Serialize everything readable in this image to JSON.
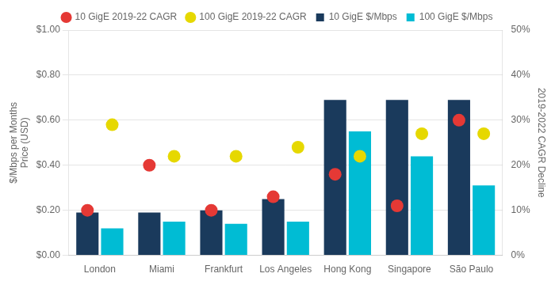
{
  "chart_data": {
    "type": "bar",
    "categories": [
      "London",
      "Miami",
      "Frankfurt",
      "Los Angeles",
      "Hong Kong",
      "Singapore",
      "São Paulo"
    ],
    "series": [
      {
        "name": "10 GigE $/Mbps",
        "type": "bar",
        "color": "#1a3a5c",
        "values": [
          0.19,
          0.19,
          0.2,
          0.25,
          0.69,
          0.69,
          0.69
        ]
      },
      {
        "name": "100 GigE $/Mbps",
        "type": "bar",
        "color": "#00bcd4",
        "values": [
          0.12,
          0.15,
          0.14,
          0.15,
          0.55,
          0.44,
          0.31
        ]
      },
      {
        "name": "10 GigE 2019-22 CAGR",
        "type": "scatter",
        "marker": "circle",
        "axis": "y2",
        "color": "#e53935",
        "values": [
          0.1,
          0.2,
          0.1,
          0.13,
          0.18,
          0.11,
          0.3
        ]
      },
      {
        "name": "100 GigE 2019-22 CAGR",
        "type": "scatter",
        "marker": "circle",
        "axis": "y2",
        "color": "#e6d800",
        "values": [
          0.29,
          0.22,
          0.22,
          0.24,
          0.22,
          0.27,
          0.27
        ]
      }
    ],
    "ylabel": "$/Mbps per Months\nPrice (USD)",
    "y2label": "2019-2022 CAGR Decline",
    "ylim": [
      0,
      1.0
    ],
    "yticks": [
      {
        "value": 0.0,
        "label": "$0.00"
      },
      {
        "value": 0.2,
        "label": "$0.20"
      },
      {
        "value": 0.4,
        "label": "$0.40"
      },
      {
        "value": 0.6,
        "label": "$0.60"
      },
      {
        "value": 0.8,
        "label": "$0.80"
      },
      {
        "value": 1.0,
        "label": "$1.00"
      }
    ],
    "y2lim": [
      0,
      0.5
    ],
    "y2ticks": [
      {
        "value": 0.0,
        "label": "0%"
      },
      {
        "value": 0.1,
        "label": "10%"
      },
      {
        "value": 0.2,
        "label": "20%"
      },
      {
        "value": 0.3,
        "label": "30%"
      },
      {
        "value": 0.4,
        "label": "40%"
      },
      {
        "value": 0.5,
        "label": "50%"
      }
    ],
    "grid": true,
    "legend": "top"
  }
}
